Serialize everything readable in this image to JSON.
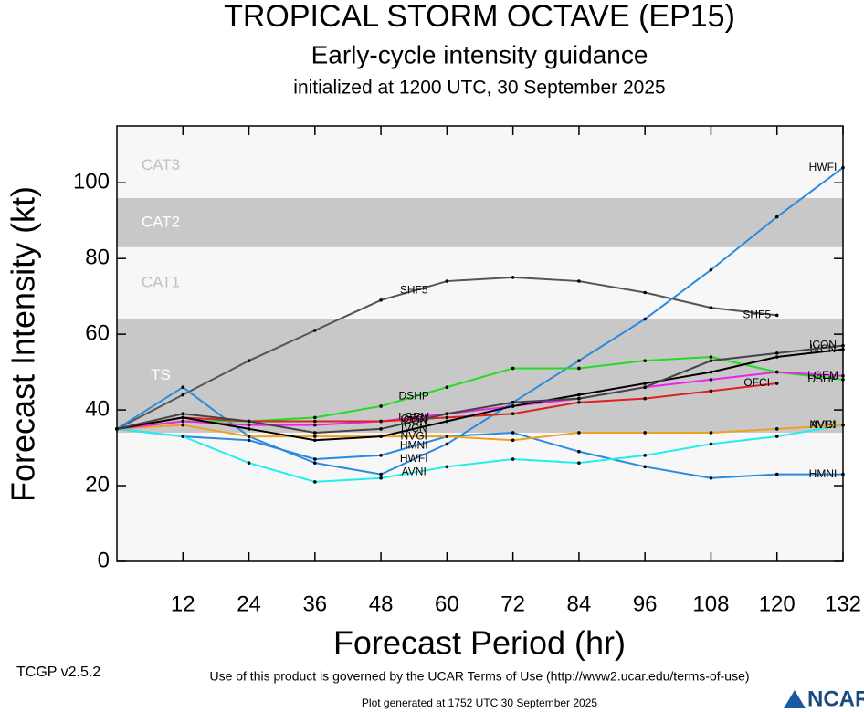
{
  "chart_data": {
    "type": "line",
    "title": "TROPICAL STORM OCTAVE (EP15)",
    "subtitle": "Early-cycle intensity guidance",
    "subtitle2": "initialized at 1200 UTC, 30 September 2025",
    "x_label": "Forecast Period (hr)",
    "y_label": "Forecast Intensity (kt)",
    "x": [
      0,
      12,
      24,
      36,
      48,
      60,
      72,
      84,
      96,
      108,
      120,
      132
    ],
    "xlim": [
      0,
      132
    ],
    "xticks": [
      12,
      24,
      36,
      48,
      60,
      72,
      84,
      96,
      108,
      120,
      132
    ],
    "ylim": [
      0,
      115
    ],
    "yticks": [
      0,
      20,
      40,
      60,
      80,
      100
    ],
    "bands": [
      {
        "label": "TS",
        "from": 34,
        "to": 64,
        "color": "#c8c8c8"
      },
      {
        "label": "CAT1",
        "from": 64,
        "to": 83,
        "color": "#f7f7f7"
      },
      {
        "label": "CAT2",
        "from": 83,
        "to": 96,
        "color": "#c8c8c8"
      },
      {
        "label": "CAT3",
        "from": 96,
        "to": 113,
        "color": "#f7f7f7"
      }
    ],
    "background": "#f7f7f7",
    "series": [
      {
        "name": "SHF5",
        "color": "#555555",
        "values": [
          35,
          44,
          53,
          61,
          69,
          74,
          75,
          74,
          71,
          67,
          65,
          null
        ]
      },
      {
        "name": "HWFI",
        "color": "#2a8ae0",
        "values": [
          35,
          46,
          33,
          26,
          23,
          31,
          42,
          53,
          64,
          77,
          91,
          104
        ]
      },
      {
        "name": "HMNI",
        "color": "#2a8ae0",
        "values": [
          35,
          33,
          32,
          27,
          28,
          33,
          34,
          29,
          25,
          22,
          23,
          23
        ]
      },
      {
        "name": "AVNI",
        "color": "#22eeee",
        "values": [
          35,
          33,
          26,
          21,
          22,
          25,
          27,
          26,
          28,
          31,
          33,
          36
        ]
      },
      {
        "name": "NVGI",
        "color": "#f0a020",
        "values": [
          35,
          36,
          33,
          33,
          33,
          33,
          32,
          34,
          34,
          34,
          35,
          36
        ]
      },
      {
        "name": "DSHP",
        "color": "#22dd22",
        "values": [
          35,
          37,
          37,
          38,
          41,
          46,
          51,
          51,
          53,
          54,
          50,
          48
        ]
      },
      {
        "name": "LGEM",
        "color": "#ee22ee",
        "values": [
          35,
          37,
          36,
          36,
          37,
          39,
          41,
          43,
          46,
          48,
          50,
          49
        ]
      },
      {
        "name": "OFCI",
        "color": "#e02020",
        "values": [
          35,
          38,
          37,
          37,
          37,
          38,
          39,
          42,
          43,
          45,
          47,
          null
        ]
      },
      {
        "name": "IVCN",
        "color": "#000000",
        "values": [
          35,
          38,
          35,
          32,
          33,
          37,
          41,
          44,
          47,
          50,
          54,
          56
        ]
      },
      {
        "name": "ICON",
        "color": "#444444",
        "values": [
          35,
          39,
          37,
          34,
          35,
          39,
          42,
          43,
          46,
          53,
          55,
          57
        ]
      }
    ],
    "footer_left": "TCGP v2.5.2",
    "footer_terms": "Use of this product is governed by the UCAR Terms of Use (http://www2.ucar.edu/terms-of-use)",
    "footer_generated": "Plot generated at 1752 UTC   30 September 2025",
    "logo": "NCAR"
  }
}
